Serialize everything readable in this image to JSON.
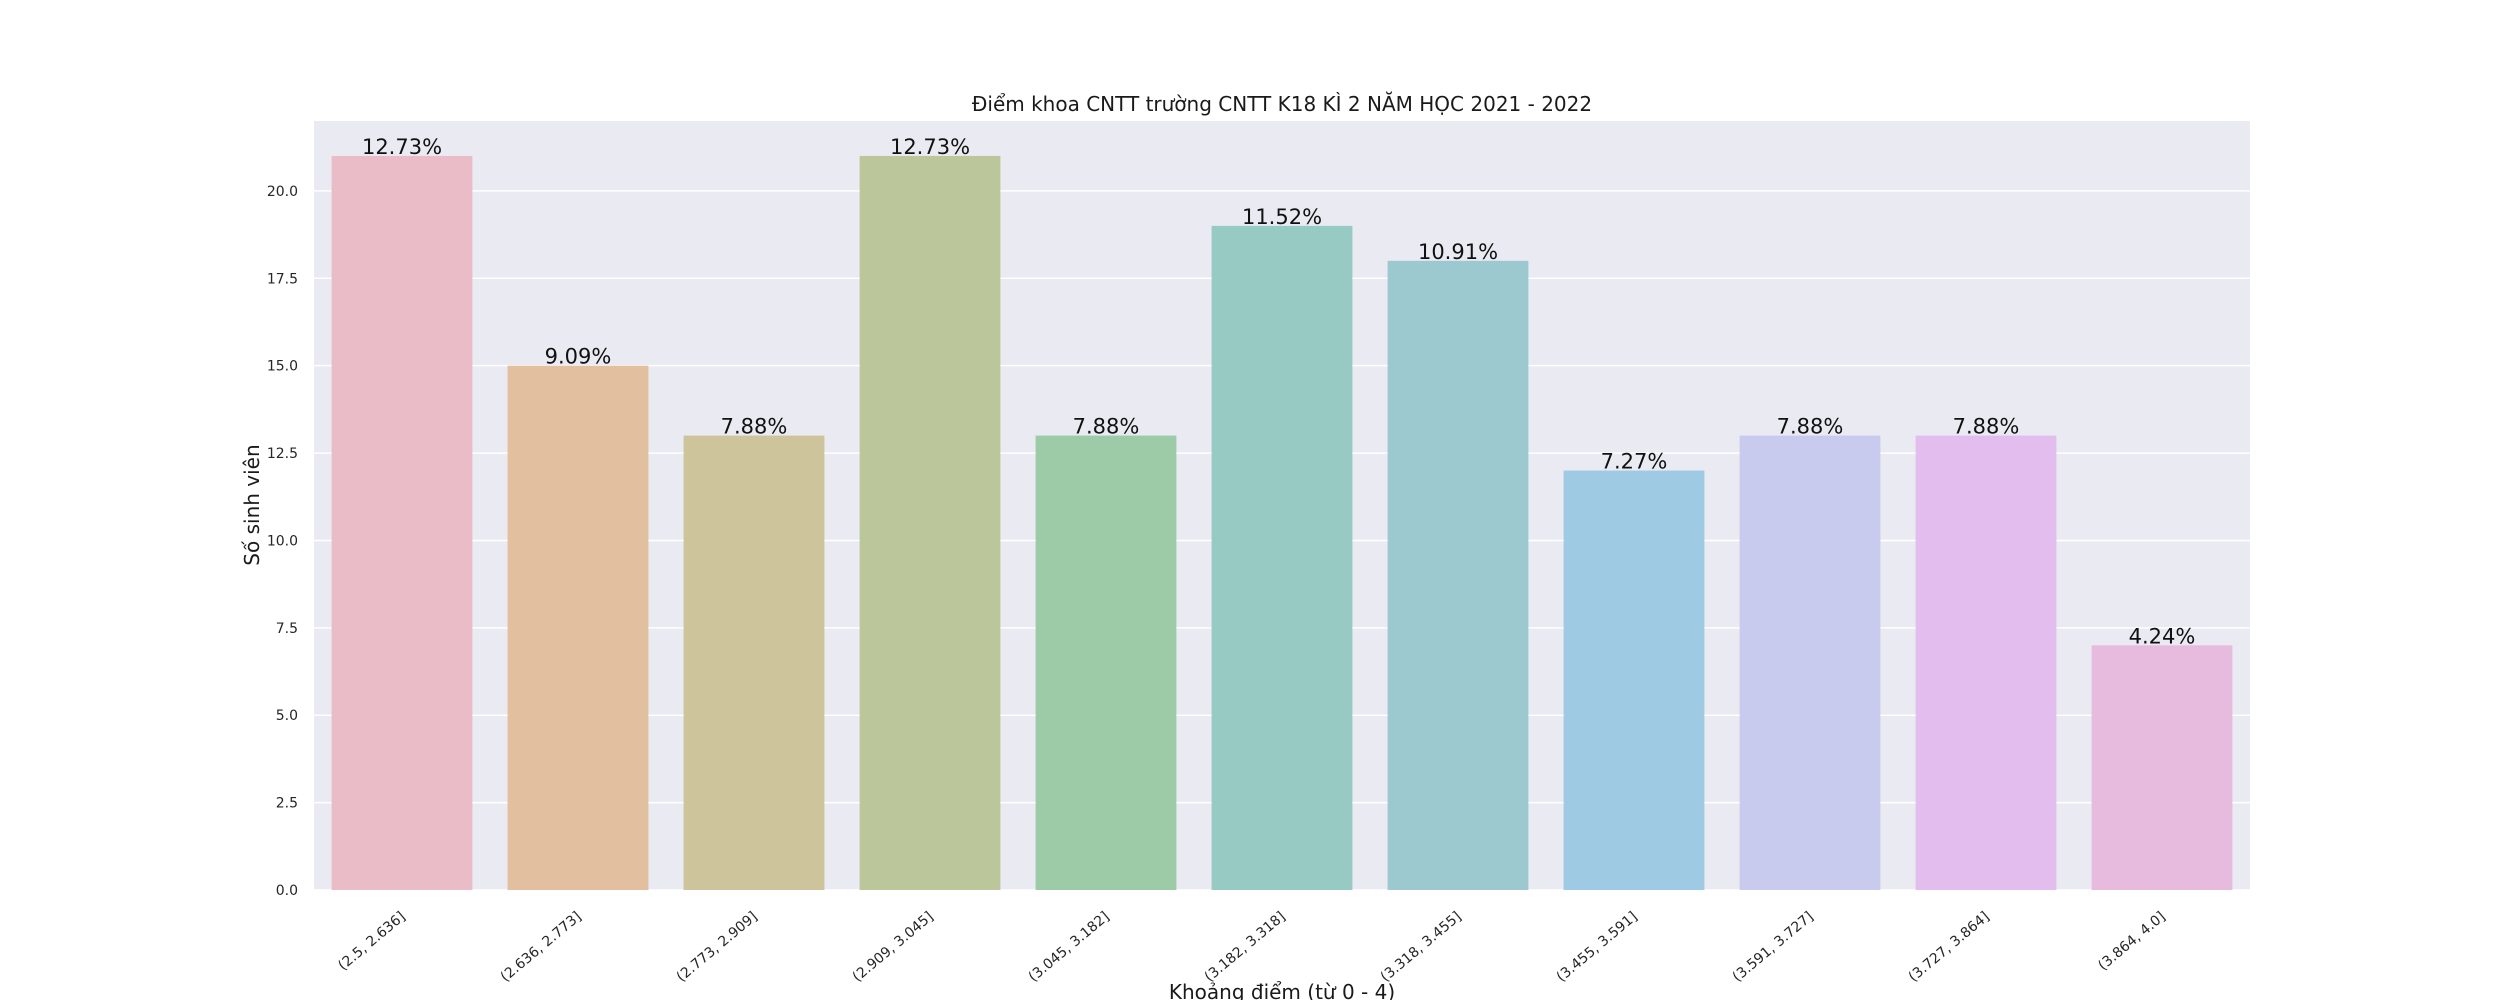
{
  "chart_data": {
    "type": "bar",
    "title": "Điểm khoa CNTT trường CNTT K18 KÌ 2 NĂM HỌC 2021 - 2022",
    "xlabel": "Khoảng điểm (từ 0 - 4)",
    "ylabel": "Số sinh viên",
    "ylim": [
      0,
      22
    ],
    "yticks": [
      "0.0",
      "2.5",
      "5.0",
      "7.5",
      "10.0",
      "12.5",
      "15.0",
      "17.5",
      "20.0"
    ],
    "grid": true,
    "categories": [
      "(2.5, 2.636]",
      "(2.636, 2.773]",
      "(2.773, 2.909]",
      "(2.909, 3.045]",
      "(3.045, 3.182]",
      "(3.182, 3.318]",
      "(3.318, 3.455]",
      "(3.455, 3.591]",
      "(3.591, 3.727]",
      "(3.727, 3.864]",
      "(3.864, 4.0]"
    ],
    "values": [
      21,
      15,
      13,
      21,
      13,
      19,
      18,
      12,
      13,
      13,
      7
    ],
    "labels": [
      "12.73%",
      "9.09%",
      "7.88%",
      "12.73%",
      "7.88%",
      "11.52%",
      "10.91%",
      "7.27%",
      "7.88%",
      "7.88%",
      "4.24%"
    ],
    "colors": [
      "#e9bcc7",
      "#e2bf9e",
      "#cec49c",
      "#bbc79a",
      "#9dcba7",
      "#98cac4",
      "#9bc9cf",
      "#9ecbe3",
      "#c8cbed",
      "#e2bded",
      "#e7bbdd"
    ],
    "background": "#eaeaf2"
  }
}
